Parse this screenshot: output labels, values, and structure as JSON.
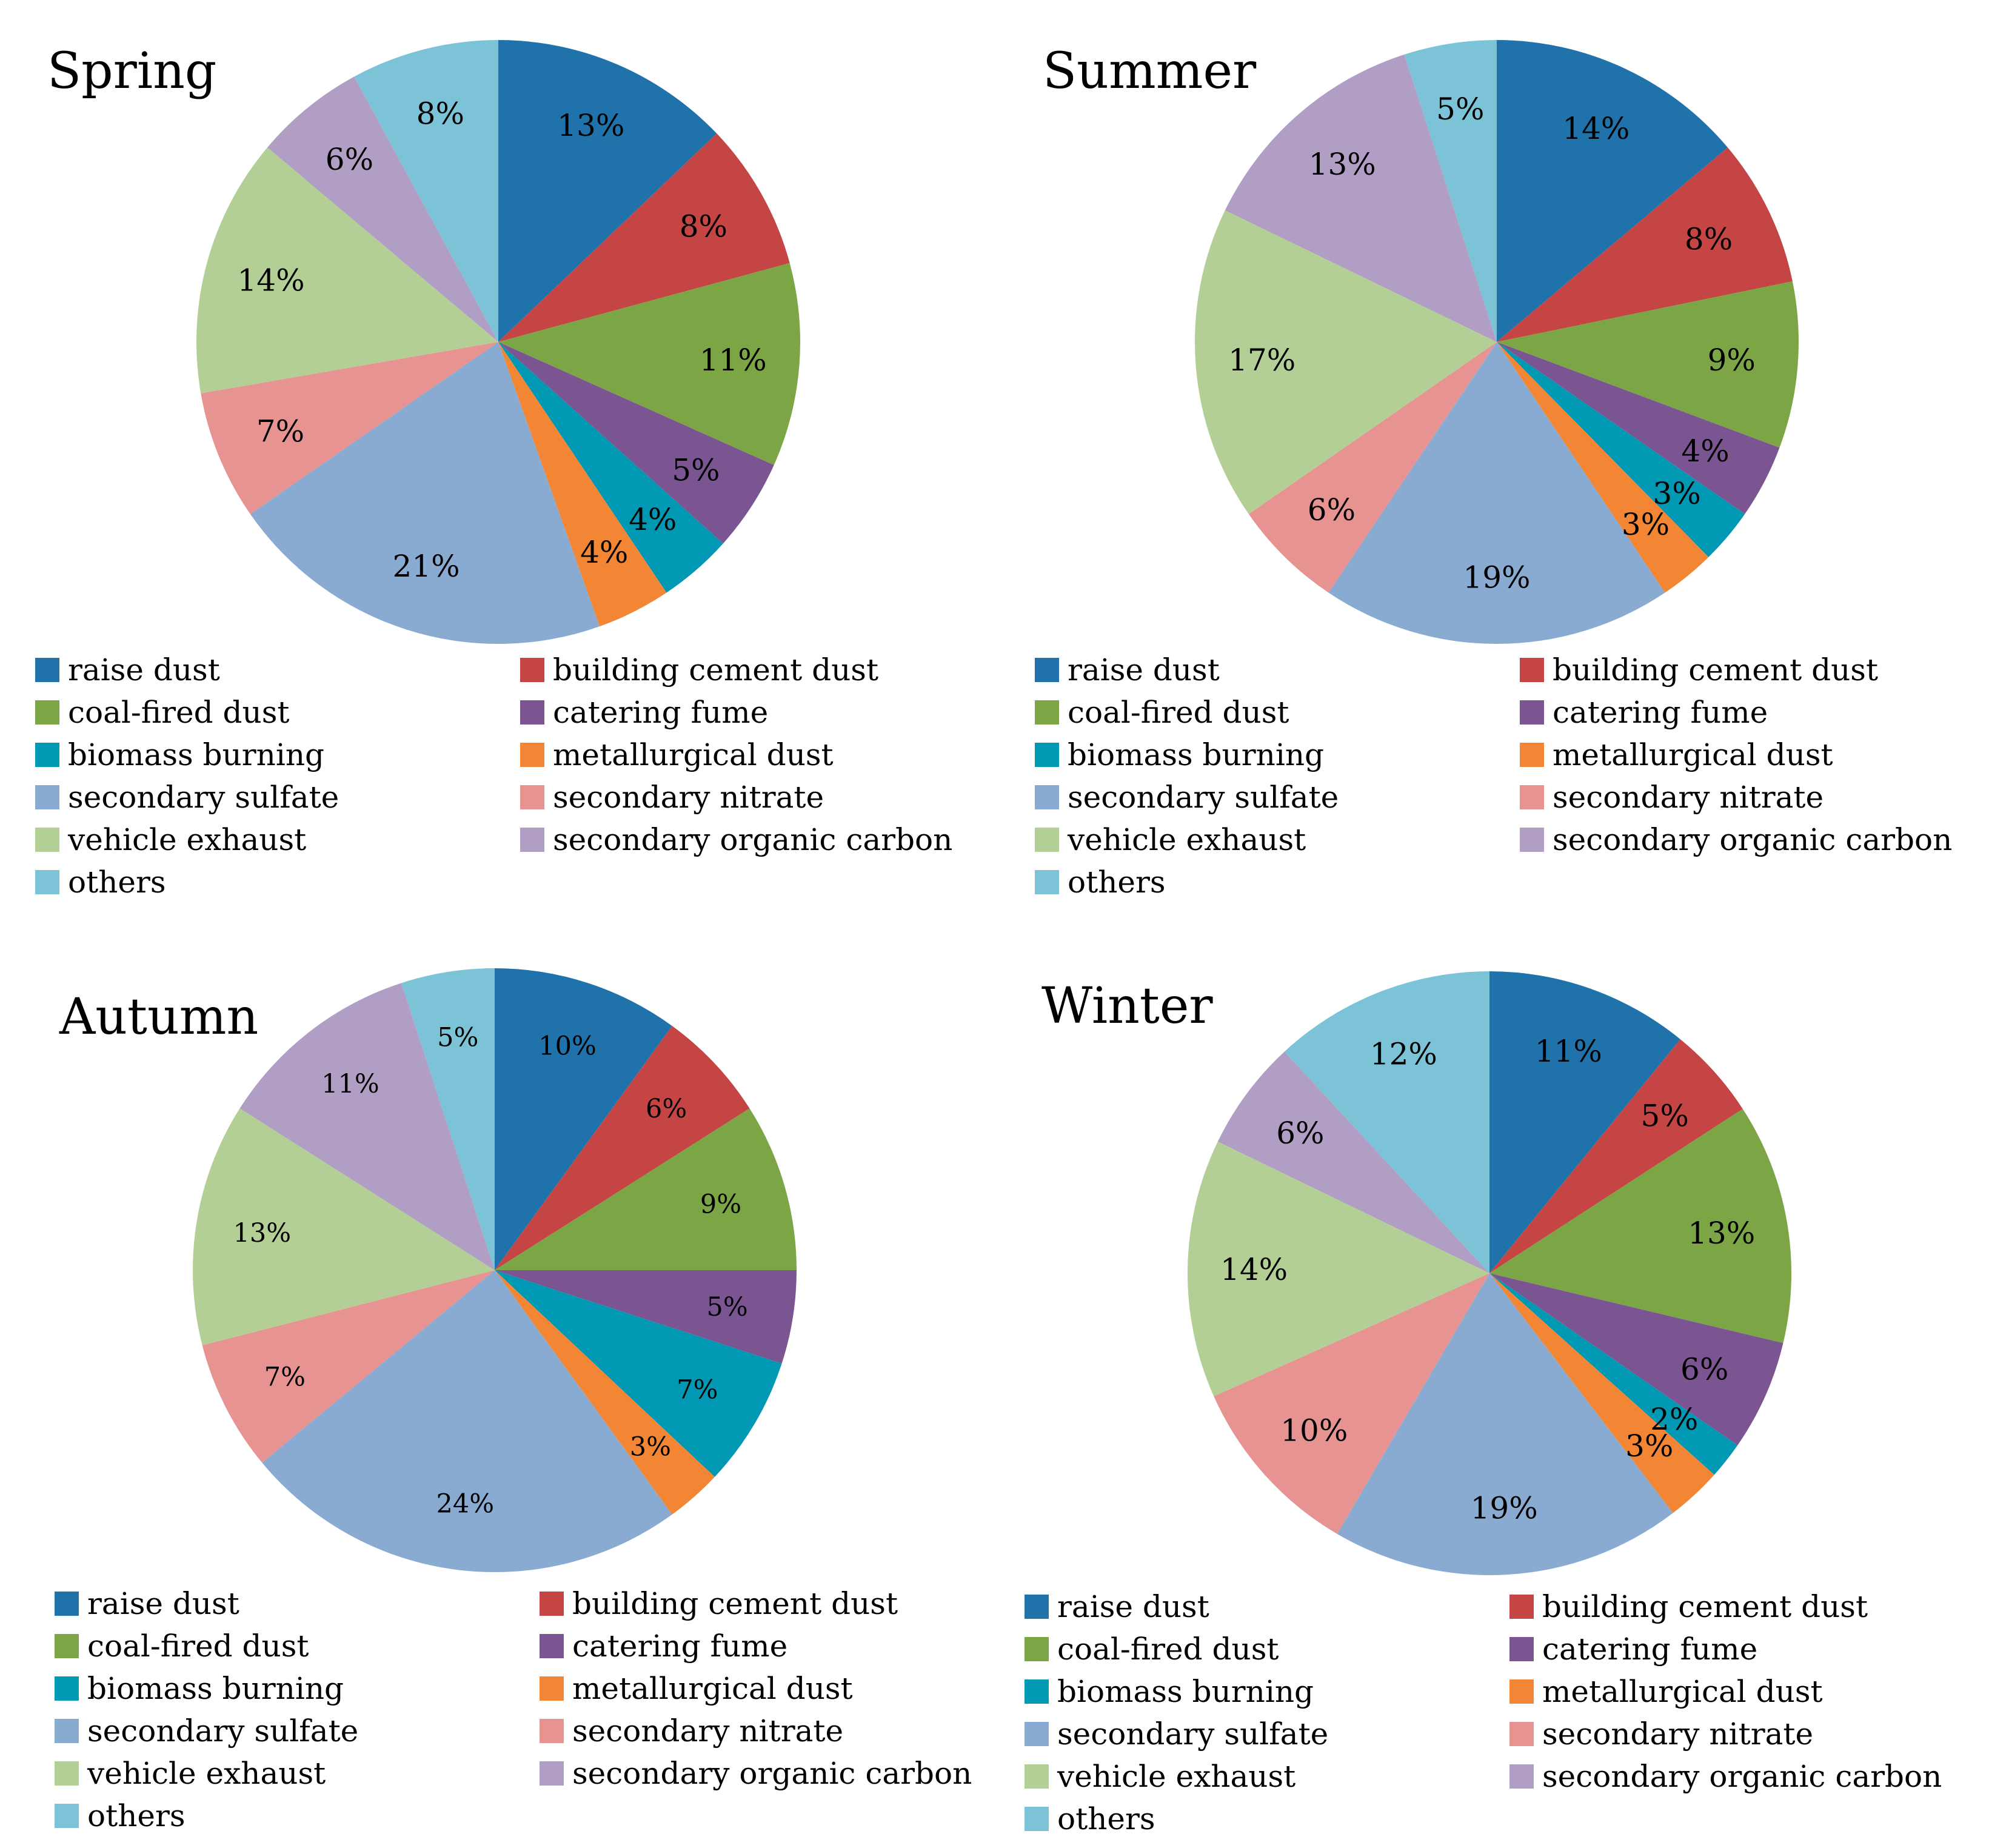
{
  "categories": [
    "raise dust",
    "building cement dust",
    "coal-fired dust",
    "catering fume",
    "biomass burning",
    "metallurgical dust",
    "secondary sulfate",
    "secondary nitrate",
    "vehicle exhaust",
    "secondary organic carbon",
    "others"
  ],
  "colors": [
    "#1f72aa",
    "#c44543",
    "#7ca545",
    "#7b5592",
    "#0098b2",
    "#f28634",
    "#8aabd1",
    "#e69391",
    "#b3cf95",
    "#b09ec4",
    "#7cc3d7"
  ],
  "chart_data": [
    {
      "type": "pie",
      "title": "Spring",
      "categories": [
        "raise dust",
        "building cement dust",
        "coal-fired dust",
        "catering fume",
        "biomass burning",
        "metallurgical dust",
        "secondary sulfate",
        "secondary nitrate",
        "vehicle exhaust",
        "secondary organic carbon",
        "others"
      ],
      "values": [
        13,
        8,
        11,
        5,
        4,
        4,
        21,
        7,
        14,
        6,
        8
      ],
      "labels": [
        "13%",
        "8%",
        "11%",
        "5%",
        "4%",
        "4%",
        "21%",
        "7%",
        "14%",
        "6%",
        "8%"
      ],
      "legend": "bottom"
    },
    {
      "type": "pie",
      "title": "Summer",
      "categories": [
        "raise dust",
        "building cement dust",
        "coal-fired dust",
        "catering fume",
        "biomass burning",
        "metallurgical dust",
        "secondary sulfate",
        "secondary nitrate",
        "vehicle exhaust",
        "secondary organic carbon",
        "others"
      ],
      "values": [
        14,
        8,
        9,
        4,
        3,
        3,
        19,
        6,
        17,
        13,
        5
      ],
      "labels": [
        "14%",
        "8%",
        "9%",
        "4%",
        "3%",
        "3%",
        "19%",
        "6%",
        "17%",
        "13%",
        "5%"
      ],
      "legend": "bottom"
    },
    {
      "type": "pie",
      "title": "Autumn",
      "categories": [
        "raise dust",
        "building cement dust",
        "coal-fired dust",
        "catering fume",
        "biomass burning",
        "metallurgical dust",
        "secondary sulfate",
        "secondary nitrate",
        "vehicle exhaust",
        "secondary organic carbon",
        "others"
      ],
      "values": [
        10,
        6,
        9,
        5,
        7,
        3,
        24,
        7,
        13,
        11,
        5
      ],
      "labels": [
        "10%",
        "6%",
        "9%",
        "5%",
        "7%",
        "3%",
        "24%",
        "7%",
        "13%",
        "11%",
        "5%"
      ],
      "legend": "bottom"
    },
    {
      "type": "pie",
      "title": "Winter",
      "categories": [
        "raise dust",
        "building cement dust",
        "coal-fired dust",
        "catering fume",
        "biomass burning",
        "metallurgical dust",
        "secondary sulfate",
        "secondary nitrate",
        "vehicle exhaust",
        "secondary organic carbon",
        "others"
      ],
      "values": [
        11,
        5,
        13,
        6,
        2,
        3,
        19,
        10,
        14,
        6,
        12
      ],
      "labels": [
        "11%",
        "5%",
        "13%",
        "6%",
        "2%",
        "3%",
        "19%",
        "10%",
        "14%",
        "6%",
        "12%"
      ],
      "legend": "bottom"
    }
  ]
}
